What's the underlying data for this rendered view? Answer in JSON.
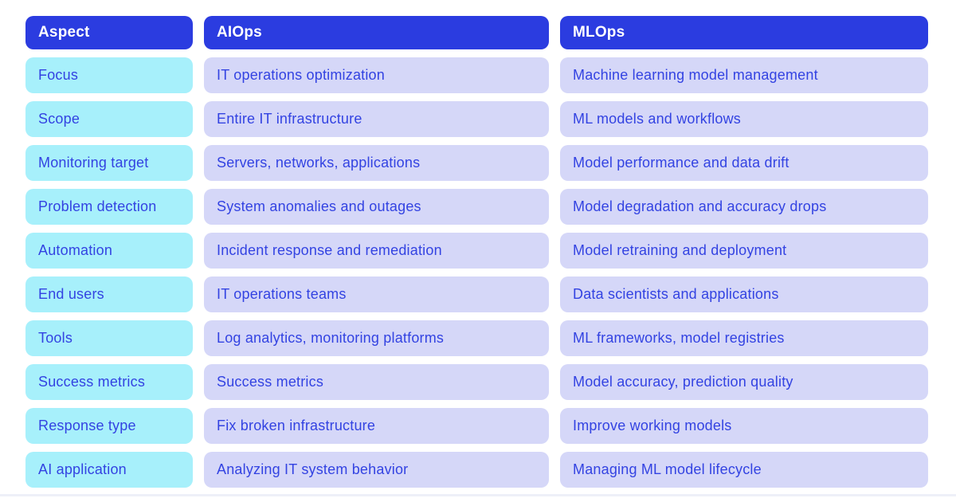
{
  "chart_data": {
    "type": "table",
    "columns": [
      "Aspect",
      "AIOps",
      "MLOps"
    ],
    "rows": [
      [
        "Focus",
        "IT operations optimization",
        "Machine learning model management"
      ],
      [
        "Scope",
        "Entire IT infrastructure",
        "ML models and workflows"
      ],
      [
        "Monitoring target",
        "Servers, networks, applications",
        "Model performance and data drift"
      ],
      [
        "Problem detection",
        "System anomalies and outages",
        "Model degradation and accuracy drops"
      ],
      [
        "Automation",
        "Incident response and remediation",
        "Model retraining and deployment"
      ],
      [
        "End users",
        "IT operations teams",
        "Data scientists and applications"
      ],
      [
        "Tools",
        "Log analytics, monitoring platforms",
        "ML frameworks, model registries"
      ],
      [
        "Success metrics",
        "Success metrics",
        "Model accuracy, prediction quality"
      ],
      [
        "Response type",
        "Fix broken infrastructure",
        "Improve working models"
      ],
      [
        "AI application",
        "Analyzing IT system behavior",
        "Managing ML model lifecycle"
      ]
    ]
  },
  "colors": {
    "header_bg": "#2b3ce0",
    "header_text": "#ffffff",
    "aspect_bg": "#a7f0fb",
    "value_bg": "#d5d7f8",
    "cell_text": "#3343e2",
    "page_bg": "#ffffff"
  }
}
